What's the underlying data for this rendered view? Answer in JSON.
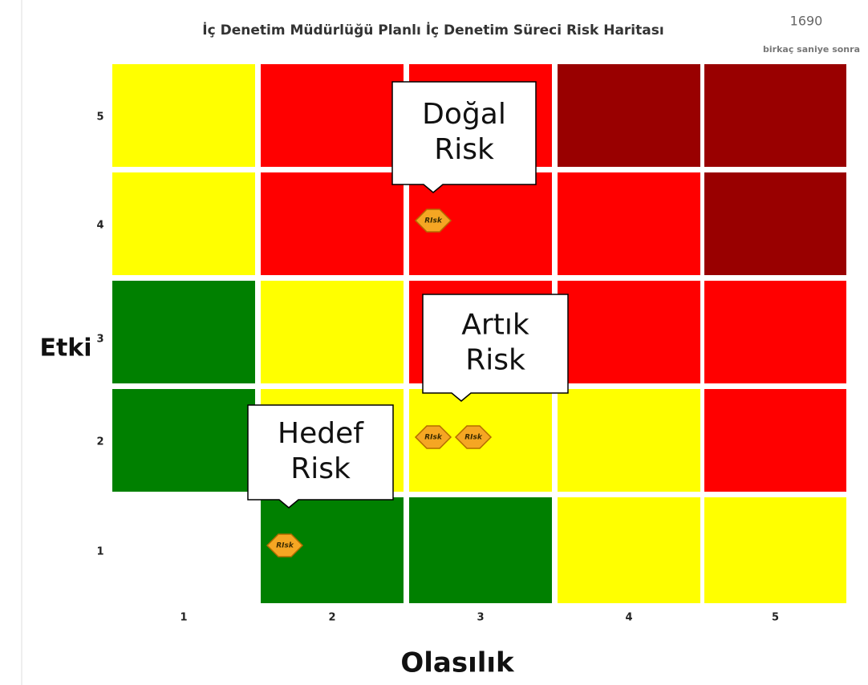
{
  "header": {
    "title": "İç Denetim Müdürlüğü Planlı İç Denetim Süreci Risk Haritası",
    "count": "1690",
    "time": "birkaç saniye sonra"
  },
  "axes": {
    "y_title": "Etki",
    "x_title": "Olasılık",
    "y_ticks": [
      "5",
      "4",
      "3",
      "2",
      "1"
    ],
    "x_ticks": [
      "1",
      "2",
      "3",
      "4",
      "5"
    ]
  },
  "grid": {
    "rows": [
      [
        "#ffff00",
        "#ff0000",
        "#ff0000",
        "#990000",
        "#990000"
      ],
      [
        "#ffff00",
        "#ff0000",
        "#ff0000",
        "#ff0000",
        "#990000"
      ],
      [
        "#008000",
        "#ffff00",
        "#ff0000",
        "#ff0000",
        "#ff0000"
      ],
      [
        "#008000",
        "#ffff00",
        "#ffff00",
        "#ffff00",
        "#ff0000"
      ],
      [
        "#ffffff",
        "#008000",
        "#008000",
        "#ffff00",
        "#ffff00"
      ]
    ]
  },
  "icon_label": "RIsk",
  "callouts": [
    {
      "lines": [
        "Doğal",
        "Risk"
      ]
    },
    {
      "lines": [
        "Artık",
        "Risk"
      ]
    },
    {
      "lines": [
        "Hedef",
        "Risk"
      ]
    }
  ]
}
